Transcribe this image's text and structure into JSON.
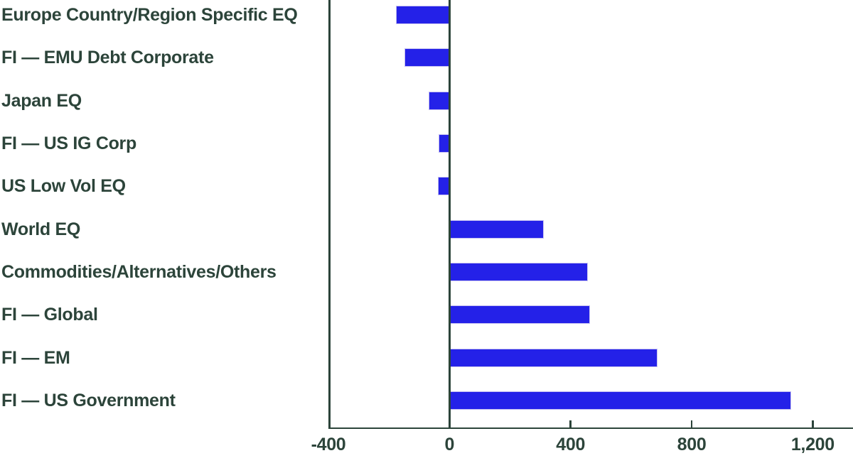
{
  "chart_data": {
    "type": "bar",
    "orientation": "horizontal",
    "title": "",
    "xlabel": "",
    "ylabel": "",
    "grid": false,
    "legend": false,
    "categories": [
      "Europe Country/Region Specific EQ",
      "FI — EMU Debt Corporate",
      "Japan EQ",
      "FI — US IG Corp",
      "US Low Vol EQ",
      "World EQ",
      "Commodities/Alternatives/Others",
      "FI — Global",
      "FI — EM",
      "FI — US Government"
    ],
    "values": [
      -178,
      -148,
      -68,
      -37,
      -38,
      312,
      457,
      465,
      687,
      1128
    ],
    "x_ticks": [
      {
        "value": -400,
        "label": "-400"
      },
      {
        "value": 0,
        "label": "0"
      },
      {
        "value": 400,
        "label": "400"
      },
      {
        "value": 800,
        "label": "800"
      },
      {
        "value": 1200,
        "label": "1,200"
      }
    ],
    "xlim": [
      -400,
      1333
    ],
    "colors": {
      "bar": "#2421e8",
      "bar_edge": "#c6c1f0",
      "axis": "#2c443a",
      "text": "#2c443a",
      "background": "#ffffff"
    }
  }
}
